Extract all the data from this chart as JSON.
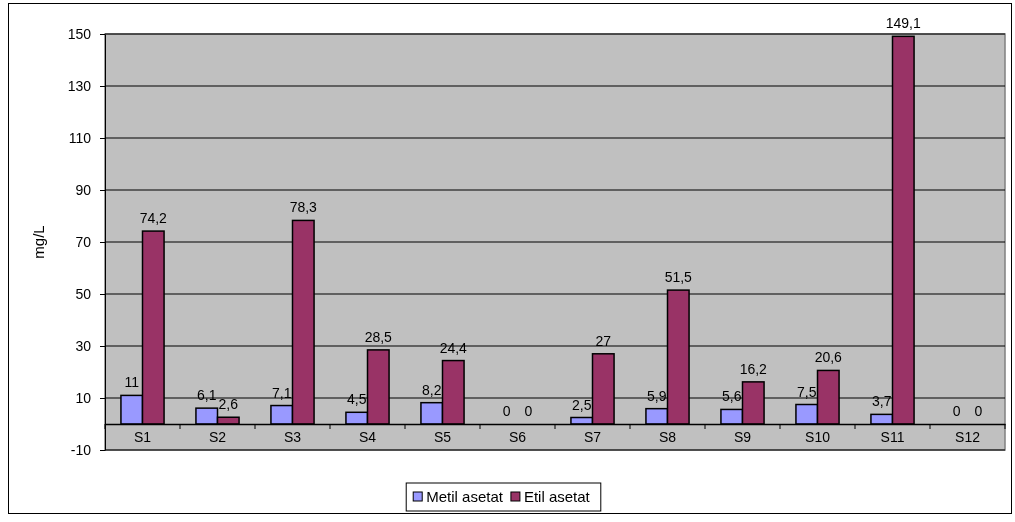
{
  "chart_data": {
    "type": "bar",
    "ylabel": "mg/L",
    "categories": [
      "S1",
      "S2",
      "S3",
      "S4",
      "S5",
      "S6",
      "S7",
      "S8",
      "S9",
      "S10",
      "S11",
      "S12"
    ],
    "series": [
      {
        "name": "Metil asetat",
        "color": "#9999ff",
        "values": [
          11,
          6.1,
          7.1,
          4.5,
          8.2,
          0,
          2.5,
          5.9,
          5.6,
          7.5,
          3.7,
          0
        ],
        "value_labels": [
          "11",
          "6,1",
          "7,1",
          "4,5",
          "8,2",
          "0",
          "2,5",
          "5,9",
          "5,6",
          "7,5",
          "3,7",
          "0"
        ]
      },
      {
        "name": "Etil asetat",
        "color": "#993366",
        "values": [
          74.2,
          2.6,
          78.3,
          28.5,
          24.4,
          0,
          27,
          51.5,
          16.2,
          20.6,
          149.1,
          0
        ],
        "value_labels": [
          "74,2",
          "2,6",
          "78,3",
          "28,5",
          "24,4",
          "0",
          "27",
          "51,5",
          "16,2",
          "20,6",
          "149,1",
          "0"
        ]
      }
    ],
    "ylim": [
      -10,
      150
    ],
    "yticks": [
      -10,
      10,
      30,
      50,
      70,
      90,
      110,
      130,
      150
    ],
    "grid": "y",
    "legend": "bottom"
  }
}
